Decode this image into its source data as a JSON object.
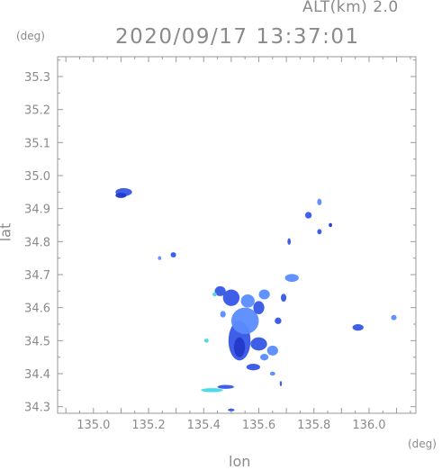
{
  "header": {
    "alt_label": "ALT(km) 2.0",
    "timestamp": "2020/09/17 13:37:01"
  },
  "chart_data": {
    "type": "heatmap",
    "title": "2020/09/17 13:37:01",
    "xlabel": "lon",
    "ylabel": "lat",
    "x_unit": "(deg)",
    "y_unit": "(deg)",
    "xlim": [
      134.87,
      136.17
    ],
    "ylim": [
      34.28,
      35.36
    ],
    "x_ticks": [
      135.0,
      135.2,
      135.4,
      135.6,
      135.8,
      136.0
    ],
    "y_ticks": [
      34.3,
      34.4,
      34.5,
      34.6,
      34.7,
      34.8,
      34.9,
      35.0,
      35.1,
      35.2,
      35.3
    ],
    "grid": false,
    "colors": {
      "light": "#5a8cff",
      "medium": "#3556e8",
      "strong": "#2238c8",
      "cyan": "#40d8e8",
      "axis": "#999999"
    },
    "echoes": [
      {
        "lon": 135.11,
        "lat": 34.95,
        "rx": 0.03,
        "ry": 0.012,
        "level": "medium"
      },
      {
        "lon": 135.1,
        "lat": 34.94,
        "rx": 0.02,
        "ry": 0.008,
        "level": "strong"
      },
      {
        "lon": 135.53,
        "lat": 34.5,
        "rx": 0.04,
        "ry": 0.06,
        "level": "medium"
      },
      {
        "lon": 135.53,
        "lat": 34.48,
        "rx": 0.02,
        "ry": 0.03,
        "level": "strong"
      },
      {
        "lon": 135.55,
        "lat": 34.56,
        "rx": 0.05,
        "ry": 0.04,
        "level": "light"
      },
      {
        "lon": 135.5,
        "lat": 34.63,
        "rx": 0.03,
        "ry": 0.025,
        "level": "medium"
      },
      {
        "lon": 135.56,
        "lat": 34.62,
        "rx": 0.025,
        "ry": 0.02,
        "level": "light"
      },
      {
        "lon": 135.6,
        "lat": 34.6,
        "rx": 0.02,
        "ry": 0.02,
        "level": "medium"
      },
      {
        "lon": 135.62,
        "lat": 34.64,
        "rx": 0.02,
        "ry": 0.015,
        "level": "light"
      },
      {
        "lon": 135.46,
        "lat": 34.65,
        "rx": 0.02,
        "ry": 0.015,
        "level": "medium"
      },
      {
        "lon": 135.6,
        "lat": 34.49,
        "rx": 0.03,
        "ry": 0.02,
        "level": "medium"
      },
      {
        "lon": 135.65,
        "lat": 34.47,
        "rx": 0.02,
        "ry": 0.015,
        "level": "light"
      },
      {
        "lon": 135.58,
        "lat": 34.42,
        "rx": 0.025,
        "ry": 0.01,
        "level": "medium"
      },
      {
        "lon": 135.62,
        "lat": 34.45,
        "rx": 0.015,
        "ry": 0.01,
        "level": "light"
      },
      {
        "lon": 135.72,
        "lat": 34.69,
        "rx": 0.025,
        "ry": 0.012,
        "level": "light"
      },
      {
        "lon": 135.69,
        "lat": 34.63,
        "rx": 0.01,
        "ry": 0.012,
        "level": "medium"
      },
      {
        "lon": 135.67,
        "lat": 34.56,
        "rx": 0.012,
        "ry": 0.01,
        "level": "medium"
      },
      {
        "lon": 135.96,
        "lat": 34.54,
        "rx": 0.02,
        "ry": 0.01,
        "level": "medium"
      },
      {
        "lon": 136.09,
        "lat": 34.57,
        "rx": 0.01,
        "ry": 0.008,
        "level": "light"
      },
      {
        "lon": 135.78,
        "lat": 34.88,
        "rx": 0.012,
        "ry": 0.01,
        "level": "medium"
      },
      {
        "lon": 135.82,
        "lat": 34.92,
        "rx": 0.008,
        "ry": 0.01,
        "level": "light"
      },
      {
        "lon": 135.82,
        "lat": 34.83,
        "rx": 0.008,
        "ry": 0.008,
        "level": "medium"
      },
      {
        "lon": 135.86,
        "lat": 34.85,
        "rx": 0.006,
        "ry": 0.006,
        "level": "strong"
      },
      {
        "lon": 135.71,
        "lat": 34.8,
        "rx": 0.006,
        "ry": 0.01,
        "level": "medium"
      },
      {
        "lon": 135.29,
        "lat": 34.76,
        "rx": 0.01,
        "ry": 0.008,
        "level": "medium"
      },
      {
        "lon": 135.24,
        "lat": 34.75,
        "rx": 0.006,
        "ry": 0.006,
        "level": "light"
      },
      {
        "lon": 135.47,
        "lat": 34.58,
        "rx": 0.01,
        "ry": 0.01,
        "level": "light"
      },
      {
        "lon": 135.41,
        "lat": 34.5,
        "rx": 0.008,
        "ry": 0.006,
        "level": "cyan"
      },
      {
        "lon": 135.44,
        "lat": 34.64,
        "rx": 0.008,
        "ry": 0.006,
        "level": "cyan"
      },
      {
        "lon": 135.48,
        "lat": 34.36,
        "rx": 0.03,
        "ry": 0.006,
        "level": "medium"
      },
      {
        "lon": 135.43,
        "lat": 34.35,
        "rx": 0.04,
        "ry": 0.006,
        "level": "cyan"
      },
      {
        "lon": 135.5,
        "lat": 34.29,
        "rx": 0.012,
        "ry": 0.004,
        "level": "medium"
      },
      {
        "lon": 135.65,
        "lat": 34.4,
        "rx": 0.01,
        "ry": 0.006,
        "level": "light"
      },
      {
        "lon": 135.68,
        "lat": 34.37,
        "rx": 0.004,
        "ry": 0.008,
        "level": "medium"
      }
    ]
  }
}
